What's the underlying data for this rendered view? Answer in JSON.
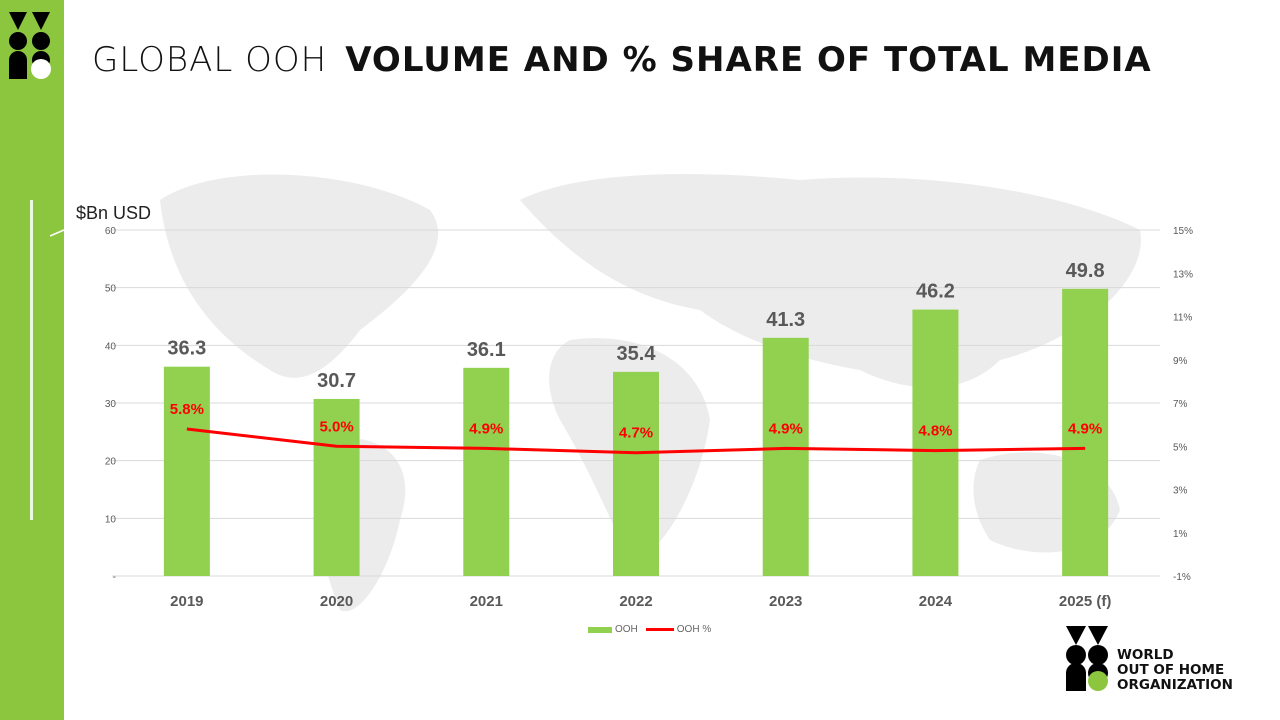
{
  "title": {
    "light": "GLOBAL OOH",
    "bold": "VOLUME AND % SHARE OF TOTAL MEDIA"
  },
  "unit_label": "$Bn USD",
  "brand": {
    "lines": [
      "WORLD",
      "OUT OF HOME",
      "ORGANIZATION"
    ],
    "accent": "#8cc63f"
  },
  "chart_data": {
    "type": "bar+line",
    "categories": [
      "2019",
      "2020",
      "2021",
      "2022",
      "2023",
      "2024",
      "2025 (f)"
    ],
    "series": [
      {
        "name": "OOH",
        "type": "bar",
        "axis": "left",
        "color": "#92d050",
        "values": [
          36.3,
          30.7,
          36.1,
          35.4,
          41.3,
          46.2,
          49.8
        ],
        "labels": [
          "36.3",
          "30.7",
          "36.1",
          "35.4",
          "41.3",
          "46.2",
          "49.8"
        ]
      },
      {
        "name": "OOH %",
        "type": "line",
        "axis": "right",
        "color": "#ff0000",
        "values": [
          5.8,
          5.0,
          4.9,
          4.7,
          4.9,
          4.8,
          4.9
        ],
        "labels": [
          "5.8%",
          "5.0%",
          "4.9%",
          "4.7%",
          "4.9%",
          "4.8%",
          "4.9%"
        ]
      }
    ],
    "ylim": [
      0,
      60
    ],
    "yticks": [
      "-",
      "10",
      "20",
      "30",
      "40",
      "50",
      "60"
    ],
    "y2lim": [
      -1,
      15
    ],
    "y2ticks": [
      "-1%",
      "1%",
      "3%",
      "5%",
      "7%",
      "9%",
      "11%",
      "13%",
      "15%"
    ],
    "grid": true,
    "legend": "bottom"
  }
}
